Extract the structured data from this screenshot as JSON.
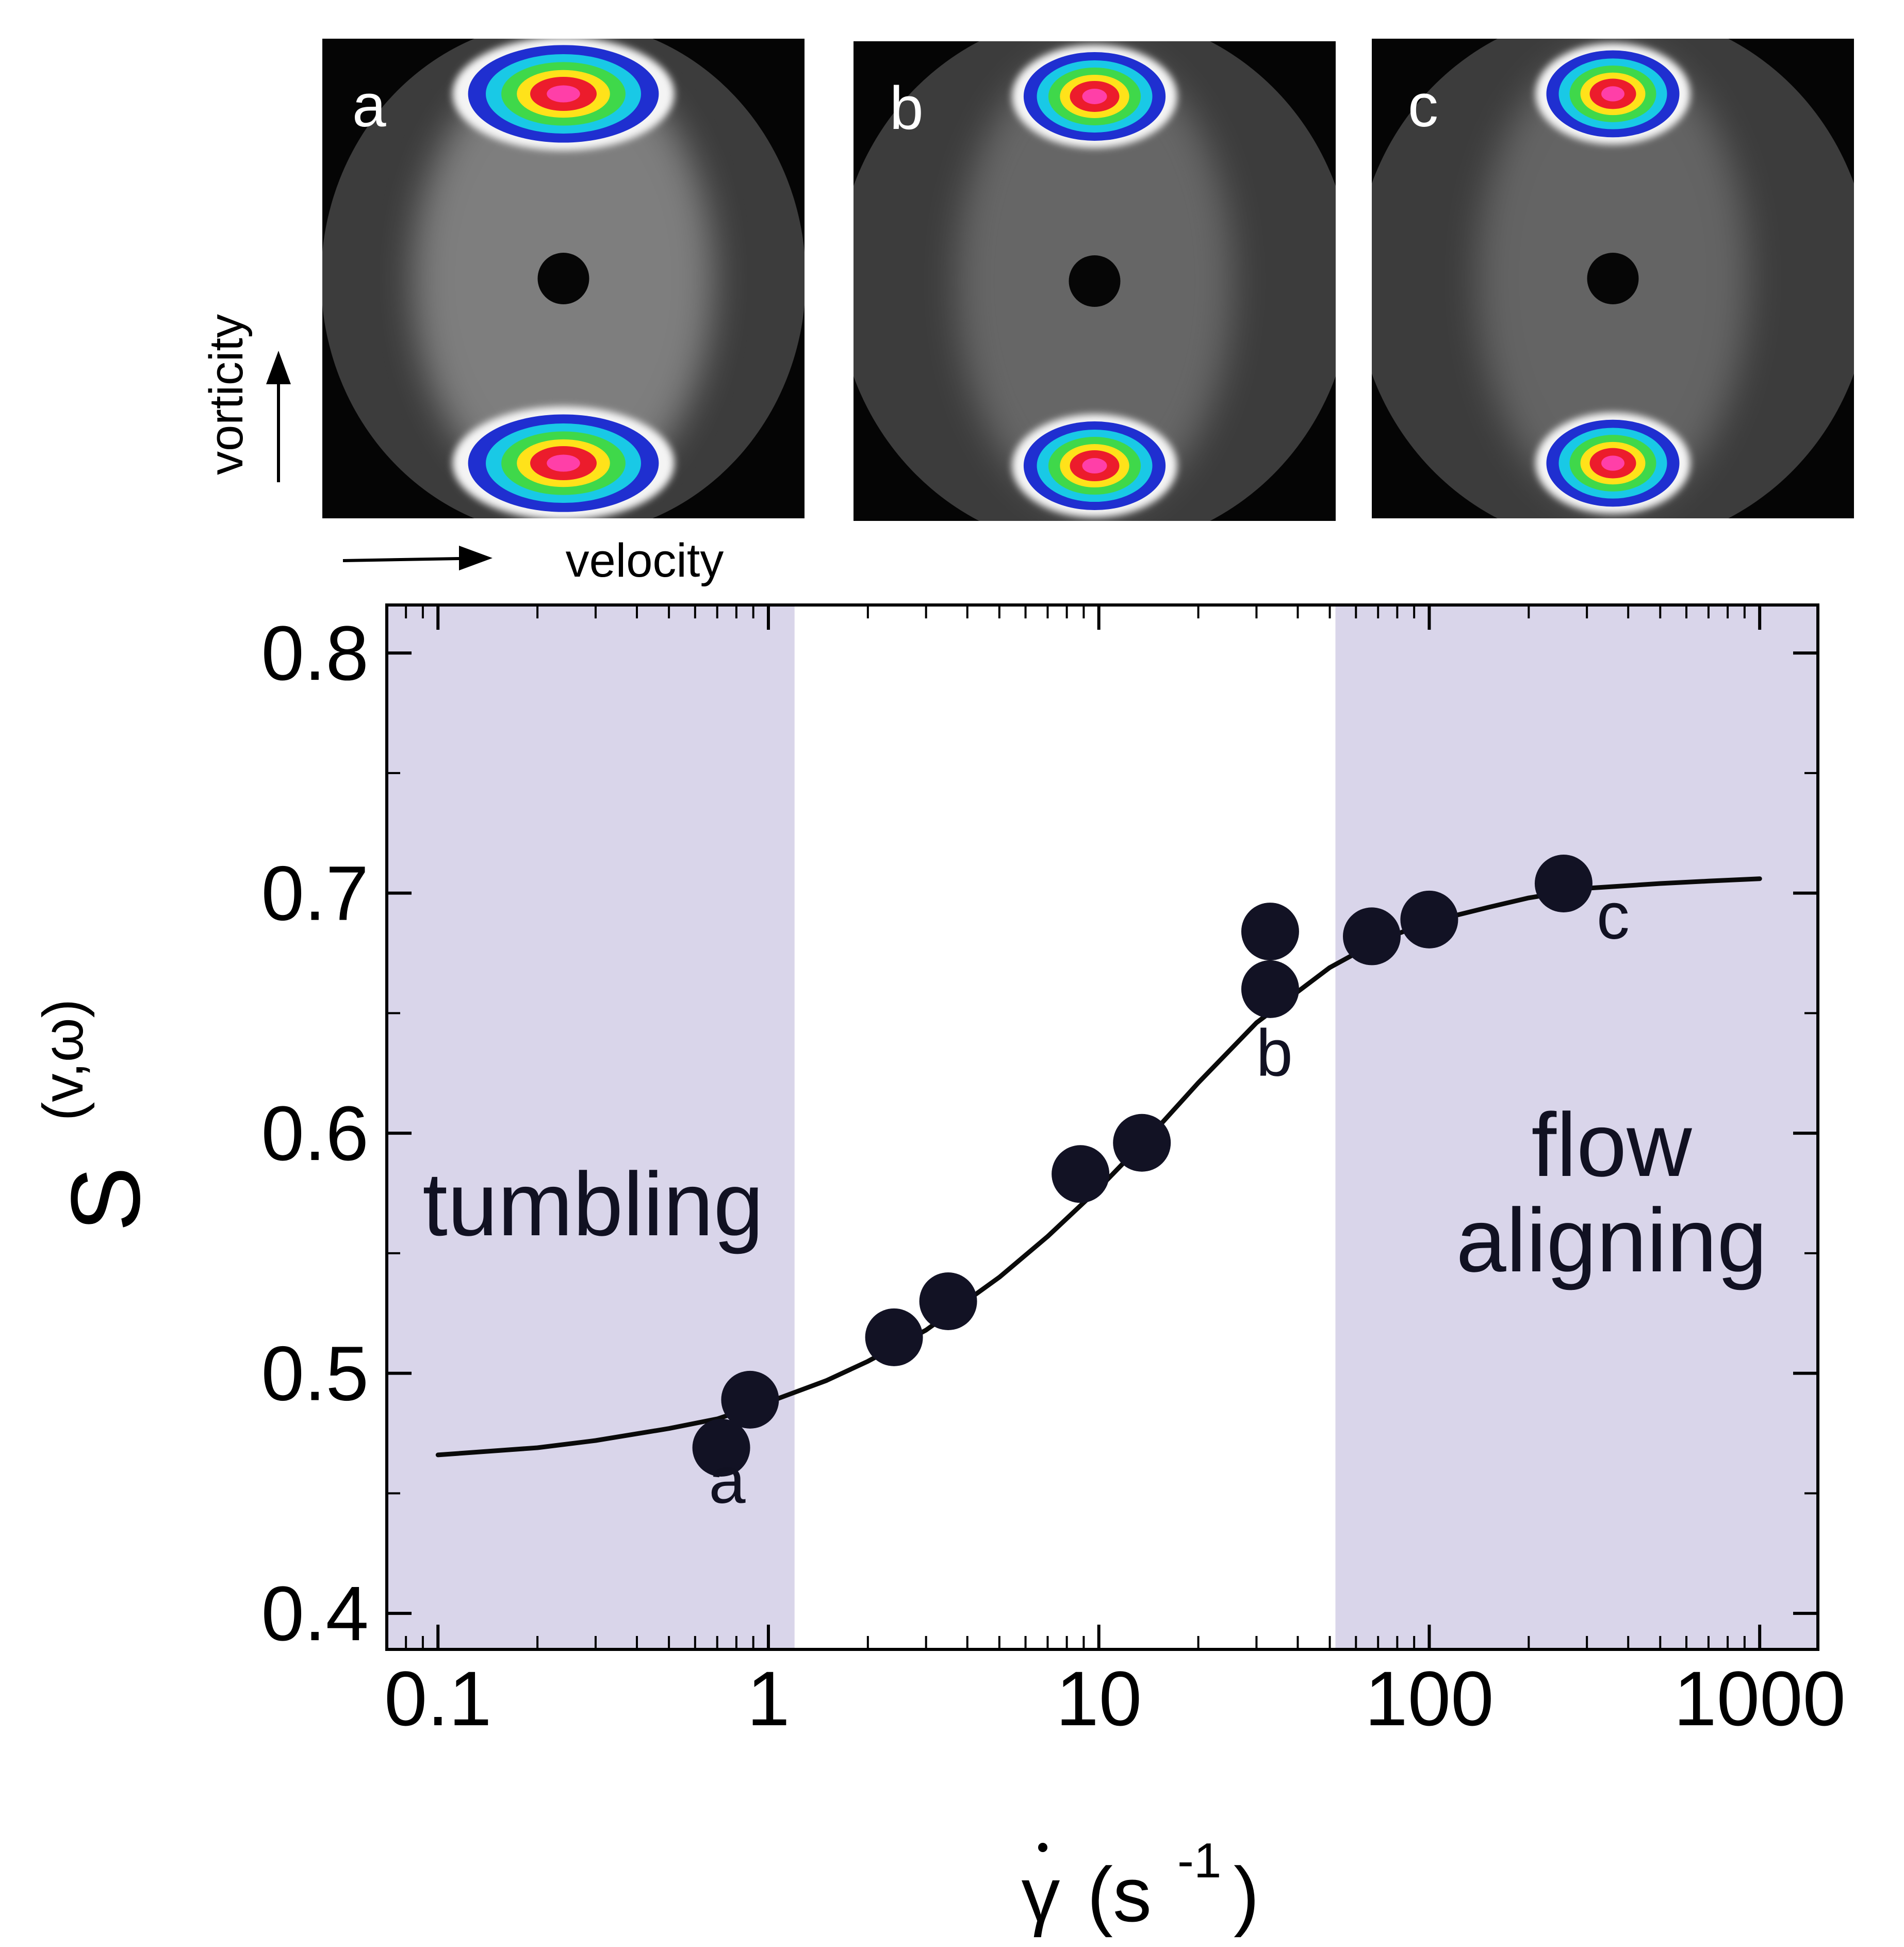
{
  "panels": {
    "labels": [
      "a",
      "b",
      "c"
    ],
    "vertical_axis_label": "vorticity",
    "horizontal_axis_label": "velocity",
    "colors": {
      "background": "#050505",
      "halo": "#9a9a9a",
      "ring_white": "#f4f4f4",
      "ring_blue": "#1f2fd0",
      "ring_cyan": "#19c9e6",
      "ring_green": "#3fd84a",
      "ring_yellow": "#ffe21a",
      "core_red": "#ec1c2c",
      "core_magenta": "#ff3fa8"
    }
  },
  "chart_data": {
    "type": "scatter",
    "xscale": "log",
    "xlim": [
      0.07,
      1500
    ],
    "ylim": [
      0.385,
      0.82
    ],
    "xticks": [
      0.1,
      1,
      10,
      100,
      1000
    ],
    "xtick_labels": [
      "0.1",
      "1",
      "10",
      "100",
      "1000"
    ],
    "yticks": [
      0.4,
      0.5,
      0.6,
      0.7,
      0.8
    ],
    "ytick_labels": [
      "0.4",
      "0.5",
      "0.6",
      "0.7",
      "0.8"
    ],
    "xlabel_symbol": "γ",
    "xlabel_unit_text": "(s",
    "xlabel_exponent": "-1",
    "xlabel_close": ")",
    "ylabel_symbol": "S",
    "ylabel_superscript": "(v,ω)",
    "grid": false,
    "regions": [
      {
        "name": "tumbling",
        "x_from": 0.07,
        "x_to": 1.2,
        "label_lines": [
          "tumbling"
        ],
        "color": "#d9d5ea"
      },
      {
        "name": "flow-aligning",
        "x_from": 52,
        "x_to": 1500,
        "label_lines": [
          "flow",
          "aligning"
        ],
        "color": "#d9d5ea"
      }
    ],
    "points": [
      {
        "x": 0.72,
        "y": 0.469
      },
      {
        "x": 0.88,
        "y": 0.489
      },
      {
        "x": 2.4,
        "y": 0.515
      },
      {
        "x": 3.5,
        "y": 0.53
      },
      {
        "x": 8.8,
        "y": 0.583
      },
      {
        "x": 13.5,
        "y": 0.596
      },
      {
        "x": 33,
        "y": 0.66
      },
      {
        "x": 33,
        "y": 0.684
      },
      {
        "x": 67,
        "y": 0.682
      },
      {
        "x": 100,
        "y": 0.689
      },
      {
        "x": 255,
        "y": 0.704
      }
    ],
    "fit_curve": {
      "x": [
        0.1,
        0.2,
        0.3,
        0.5,
        0.7,
        1,
        1.5,
        2,
        3,
        5,
        7,
        10,
        15,
        20,
        30,
        50,
        70,
        100,
        150,
        200,
        300,
        500,
        700,
        1000
      ],
      "y": [
        0.466,
        0.469,
        0.472,
        0.477,
        0.481,
        0.488,
        0.497,
        0.505,
        0.518,
        0.54,
        0.557,
        0.577,
        0.602,
        0.621,
        0.646,
        0.669,
        0.68,
        0.688,
        0.694,
        0.698,
        0.702,
        0.704,
        0.705,
        0.706
      ]
    },
    "annotations": [
      {
        "text": "a",
        "x": 0.75,
        "y": 0.446
      },
      {
        "text": "b",
        "x": 34,
        "y": 0.624
      },
      {
        "text": "c",
        "x": 360,
        "y": 0.681
      }
    ],
    "colors": {
      "marker": "#121224",
      "curve": "#0a0a0a",
      "text": "#111122"
    }
  }
}
